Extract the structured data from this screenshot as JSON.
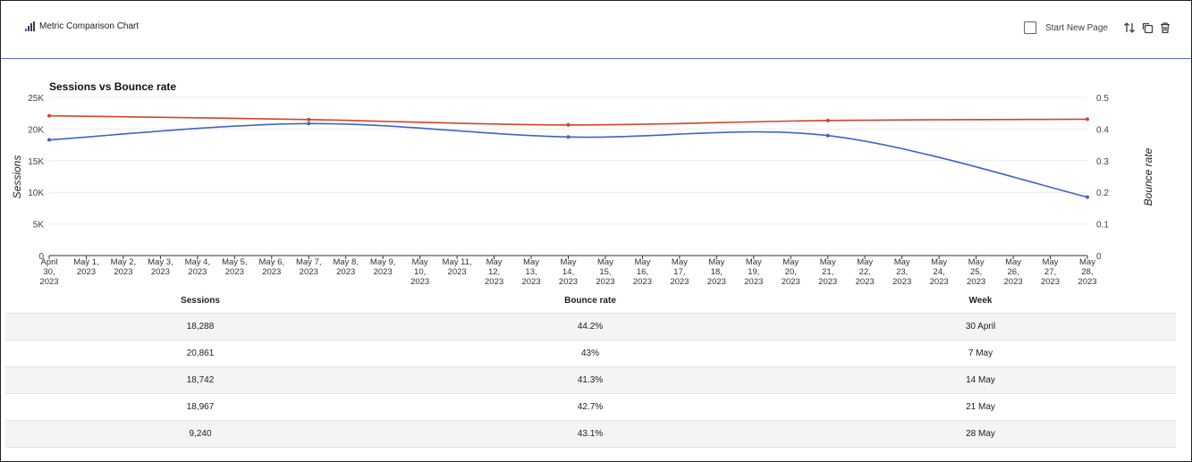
{
  "widget": {
    "title": "Metric Comparison Chart",
    "start_new_page_label": "Start New Page",
    "icons": [
      "bar-chart-icon",
      "sort-arrows-icon",
      "copy-icon",
      "trash-icon"
    ]
  },
  "chart_data": {
    "type": "line",
    "title": "Sessions vs Bounce rate",
    "xlabel": "",
    "ylabel": "Sessions",
    "y2label": "Bounce rate",
    "ylim": [
      0,
      25000
    ],
    "y2lim": [
      0,
      0.5
    ],
    "yticks": [
      "0",
      "5K",
      "10K",
      "15K",
      "20K",
      "25K"
    ],
    "y2ticks": [
      "0",
      "0.1",
      "0.2",
      "0.3",
      "0.4",
      "0.5"
    ],
    "grid": true,
    "x_categories": [
      [
        "April",
        "30,",
        "2023"
      ],
      [
        "May 1,",
        "2023"
      ],
      [
        "May 2,",
        "2023"
      ],
      [
        "May 3,",
        "2023"
      ],
      [
        "May 4,",
        "2023"
      ],
      [
        "May 5,",
        "2023"
      ],
      [
        "May 6,",
        "2023"
      ],
      [
        "May 7,",
        "2023"
      ],
      [
        "May 8,",
        "2023"
      ],
      [
        "May 9,",
        "2023"
      ],
      [
        "May",
        "10,",
        "2023"
      ],
      [
        "May 11,",
        "2023"
      ],
      [
        "May",
        "12,",
        "2023"
      ],
      [
        "May",
        "13,",
        "2023"
      ],
      [
        "May",
        "14,",
        "2023"
      ],
      [
        "May",
        "15,",
        "2023"
      ],
      [
        "May",
        "16,",
        "2023"
      ],
      [
        "May",
        "17,",
        "2023"
      ],
      [
        "May",
        "18,",
        "2023"
      ],
      [
        "May",
        "19,",
        "2023"
      ],
      [
        "May",
        "20,",
        "2023"
      ],
      [
        "May",
        "21,",
        "2023"
      ],
      [
        "May",
        "22,",
        "2023"
      ],
      [
        "May",
        "23,",
        "2023"
      ],
      [
        "May",
        "24,",
        "2023"
      ],
      [
        "May",
        "25,",
        "2023"
      ],
      [
        "May",
        "26,",
        "2023"
      ],
      [
        "May",
        "27,",
        "2023"
      ],
      [
        "May",
        "28,",
        "2023"
      ]
    ],
    "series": [
      {
        "name": "Sessions",
        "axis": "left",
        "color": "#3d64c8",
        "x_index": [
          0,
          7,
          14,
          21,
          28
        ],
        "values": [
          18288,
          20861,
          18742,
          18967,
          9240
        ]
      },
      {
        "name": "Bounce rate",
        "axis": "right",
        "color": "#d2442a",
        "x_index": [
          0,
          7,
          14,
          21,
          28
        ],
        "values": [
          0.442,
          0.43,
          0.413,
          0.427,
          0.431
        ]
      }
    ]
  },
  "table": {
    "headers": [
      "Sessions",
      "Bounce rate",
      "Week"
    ],
    "rows": [
      [
        "18,288",
        "44.2%",
        "30 April"
      ],
      [
        "20,861",
        "43%",
        "7 May"
      ],
      [
        "18,742",
        "41.3%",
        "14 May"
      ],
      [
        "18,967",
        "42.7%",
        "21 May"
      ],
      [
        "9,240",
        "43.1%",
        "28 May"
      ]
    ]
  }
}
